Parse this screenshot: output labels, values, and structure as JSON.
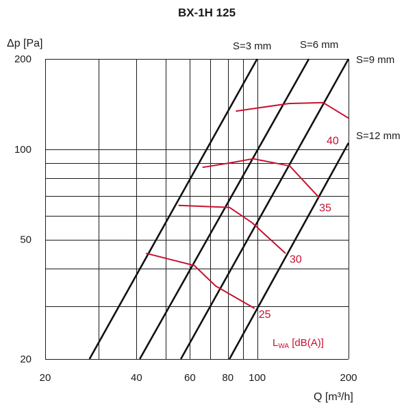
{
  "chart_data": {
    "type": "line",
    "title": "BX-1H 125",
    "xlabel": "Q [m³/h]",
    "ylabel": "Δp [Pa]",
    "x_scale": "log",
    "y_scale": "log",
    "xlim": [
      20,
      200
    ],
    "ylim": [
      20,
      200
    ],
    "x_ticks": [
      20,
      40,
      60,
      80,
      100,
      200
    ],
    "y_ticks": [
      20,
      50,
      100,
      200
    ],
    "x_grid": [
      20,
      30,
      40,
      50,
      60,
      70,
      80,
      90,
      100,
      200
    ],
    "y_grid": [
      20,
      30,
      40,
      50,
      60,
      70,
      80,
      90,
      100,
      200
    ],
    "grid": true,
    "legend": "L_WA [dB(A)]",
    "damper_series": [
      {
        "name": "S=3 mm",
        "x": [
          28,
          100
        ],
        "y": [
          20,
          200
        ]
      },
      {
        "name": "S=6 mm",
        "x": [
          41,
          148
        ],
        "y": [
          20,
          200
        ]
      },
      {
        "name": "S=9 mm",
        "x": [
          56,
          200
        ],
        "y": [
          20,
          200
        ]
      },
      {
        "name": "S=12 mm",
        "x": [
          81,
          200
        ],
        "y": [
          20,
          105
        ]
      }
    ],
    "noise_series": [
      {
        "name": "25",
        "x": [
          43,
          62,
          73,
          98
        ],
        "y": [
          45,
          41,
          35,
          29.5
        ]
      },
      {
        "name": "30",
        "x": [
          55,
          81,
          96,
          124
        ],
        "y": [
          65,
          64,
          57,
          45
        ]
      },
      {
        "name": "35",
        "x": [
          66,
          81,
          97,
          128,
          160
        ],
        "y": [
          87,
          90,
          93,
          88,
          69
        ]
      },
      {
        "name": "40",
        "x": [
          85,
          127,
          165,
          200
        ],
        "y": [
          134,
          142,
          143,
          127
        ]
      }
    ]
  }
}
